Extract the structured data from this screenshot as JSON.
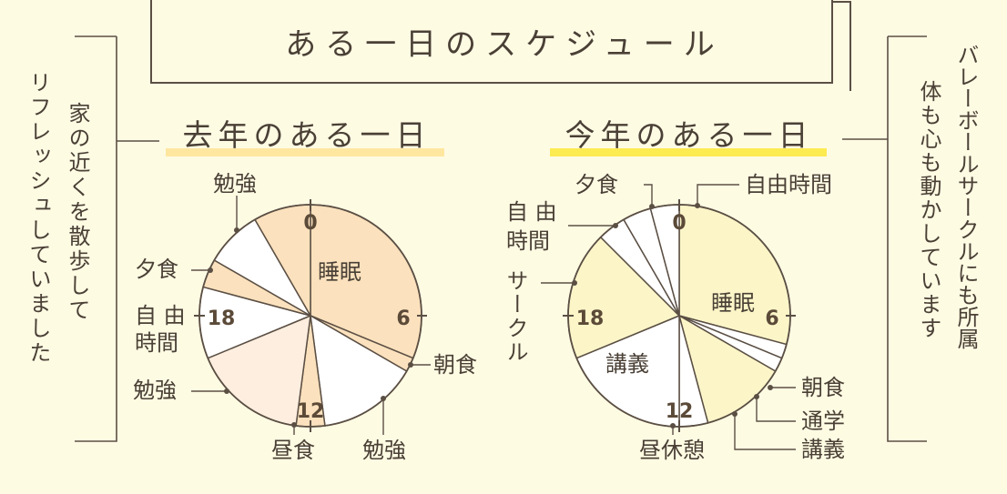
{
  "title": "ある一日のスケジュール",
  "colors": {
    "background": "#fefbe3",
    "stroke": "#5b4f44",
    "sleep_last_year": "#fbe1bd",
    "cream_last_year": "#fdeedf",
    "sleep_this_year": "#fbf5c8",
    "underline_left": "#ffe7a0",
    "underline_right": "#fdeb52",
    "white": "#ffffff"
  },
  "left_note": {
    "line1": "家の近くを散歩して",
    "line2": "リフレッシュしていました"
  },
  "right_note": {
    "line1": "バレーボールサークルにも所属",
    "line2": "体も心も動かしています"
  },
  "chart_data": [
    {
      "type": "pie",
      "title": "去年のある一日",
      "unit": "hours (24h clock)",
      "ticks": [
        "0",
        "6",
        "12",
        "18"
      ],
      "slices": [
        {
          "label": "睡眠",
          "start": 0,
          "end": 7.5,
          "color": "#fbe1bd"
        },
        {
          "label": "朝食",
          "start": 7.5,
          "end": 8,
          "color": "#fbe1bd"
        },
        {
          "label": "勉強",
          "start": 8,
          "end": 11.5,
          "color": "#ffffff"
        },
        {
          "label": "昼食",
          "start": 11.5,
          "end": 12.5,
          "color": "#fbe1bd"
        },
        {
          "label": "勉強",
          "start": 12.5,
          "end": 16.5,
          "color": "#fdeedf"
        },
        {
          "label": "自由時間",
          "start": 16.5,
          "end": 19,
          "color": "#ffffff"
        },
        {
          "label": "夕食",
          "start": 19,
          "end": 20,
          "color": "#fbe1bd"
        },
        {
          "label": "勉強",
          "start": 20,
          "end": 22,
          "color": "#ffffff"
        },
        {
          "label": "睡眠",
          "start": 22,
          "end": 24,
          "color": "#fbe1bd"
        }
      ]
    },
    {
      "type": "pie",
      "title": "今年のある一日",
      "unit": "hours (24h clock)",
      "ticks": [
        "0",
        "6",
        "12",
        "18"
      ],
      "slices": [
        {
          "label": "睡眠",
          "start": 0,
          "end": 7,
          "color": "#fbf5c8"
        },
        {
          "label": "朝食",
          "start": 7,
          "end": 7.5,
          "color": "#ffffff"
        },
        {
          "label": "通学",
          "start": 7.5,
          "end": 8,
          "color": "#ffffff"
        },
        {
          "label": "講義",
          "start": 8,
          "end": 11,
          "color": "#fbf5c8"
        },
        {
          "label": "昼休憩",
          "start": 11,
          "end": 12,
          "color": "#ffffff"
        },
        {
          "label": "講義",
          "start": 12,
          "end": 16.5,
          "color": "#ffffff"
        },
        {
          "label": "サークル",
          "start": 16.5,
          "end": 21,
          "color": "#fbf5c8"
        },
        {
          "label": "自由時間",
          "start": 21,
          "end": 22,
          "color": "#ffffff"
        },
        {
          "label": "夕食",
          "start": 22,
          "end": 23,
          "color": "#ffffff"
        },
        {
          "label": "自由時間",
          "start": 23,
          "end": 24,
          "color": "#ffffff"
        }
      ]
    }
  ]
}
